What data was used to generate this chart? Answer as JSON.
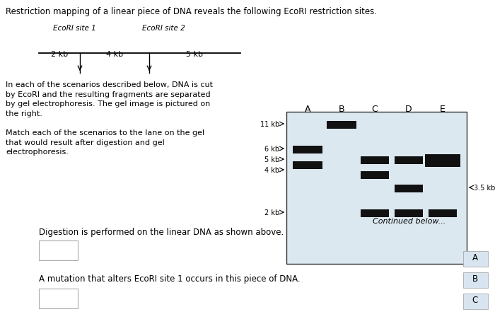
{
  "title": "Restriction mapping of a linear piece of DNA reveals the following EcoRI restriction sites.",
  "bg_color": "#ffffff",
  "gel_bg_color": "#dce8f0",
  "band_color": "#111111",
  "lane_labels": [
    "A",
    "B",
    "C",
    "D",
    "E"
  ],
  "marker_labels": [
    "11 kb",
    "6 kb",
    "5 kb",
    "4 kb",
    "2 kb"
  ],
  "bottom_text1": "Digestion is performed on the linear DNA as shown above.",
  "bottom_text2": "A mutation that alters EcoRI site 1 occurs in this piece of DNA.",
  "continued_text": "Continued below...",
  "choice_labels": [
    "A",
    "B",
    "C"
  ]
}
